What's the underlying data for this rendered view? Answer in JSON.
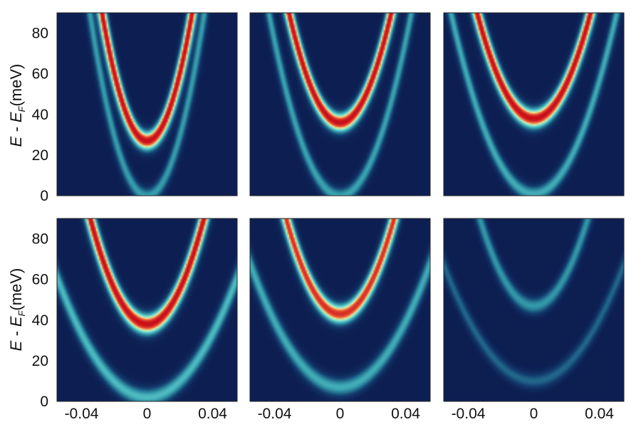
{
  "chart_data": {
    "type": "heatmap",
    "layout": "2 rows x 3 columns of intensity maps",
    "colormap": "jet-like (dark navy low -> cyan -> yellow -> red high)",
    "colors": {
      "low": "#0c1a4e",
      "mid": "#6fe0de",
      "high": "#c9101a"
    },
    "ylabel": {
      "main": "E - E",
      "subscript": "F",
      "unit": "(meV)"
    },
    "xlim": [
      -0.055,
      0.055
    ],
    "ylim": [
      0,
      90
    ],
    "xticks": [
      -0.04,
      0,
      0.04
    ],
    "xtick_labels": [
      "-0.04",
      "0",
      "0.04"
    ],
    "yticks": [
      0,
      20,
      40,
      60,
      80
    ],
    "ytick_labels": [
      "0",
      "20",
      "40",
      "60",
      "80"
    ],
    "panels": [
      {
        "row": 0,
        "col": 0,
        "bands": [
          {
            "e0": 27,
            "k": 0.0155,
            "w": 3.2,
            "amp": 1.0,
            "hot": true
          },
          {
            "e0": 0,
            "k": 0.0165,
            "w": 2.6,
            "amp": 0.5,
            "hot": false
          }
        ]
      },
      {
        "row": 0,
        "col": 1,
        "bands": [
          {
            "e0": 36,
            "k": 0.019,
            "w": 3.2,
            "amp": 1.0,
            "hot": true
          },
          {
            "e0": 0,
            "k": 0.0205,
            "w": 2.6,
            "amp": 0.52,
            "hot": false
          }
        ]
      },
      {
        "row": 0,
        "col": 2,
        "bands": [
          {
            "e0": 38,
            "k": 0.0215,
            "w": 3.3,
            "amp": 1.0,
            "hot": true
          },
          {
            "e0": 1,
            "k": 0.024,
            "w": 2.6,
            "amp": 0.55,
            "hot": false
          }
        ]
      },
      {
        "row": 1,
        "col": 0,
        "bands": [
          {
            "e0": 38,
            "k": 0.0215,
            "w": 3.4,
            "amp": 1.0,
            "hot": true
          },
          {
            "e0": 2,
            "k": 0.032,
            "w": 3.0,
            "amp": 0.6,
            "hot": false
          }
        ]
      },
      {
        "row": 1,
        "col": 1,
        "bands": [
          {
            "e0": 43,
            "k": 0.0215,
            "w": 3.3,
            "amp": 0.92,
            "hot": true
          },
          {
            "e0": 7,
            "k": 0.0315,
            "w": 3.0,
            "amp": 0.55,
            "hot": false
          }
        ]
      },
      {
        "row": 1,
        "col": 2,
        "bands": [
          {
            "e0": 47,
            "k": 0.0225,
            "w": 2.8,
            "amp": 0.62,
            "hot": false
          },
          {
            "e0": 10,
            "k": 0.0325,
            "w": 2.6,
            "amp": 0.42,
            "hot": false
          }
        ]
      }
    ]
  }
}
